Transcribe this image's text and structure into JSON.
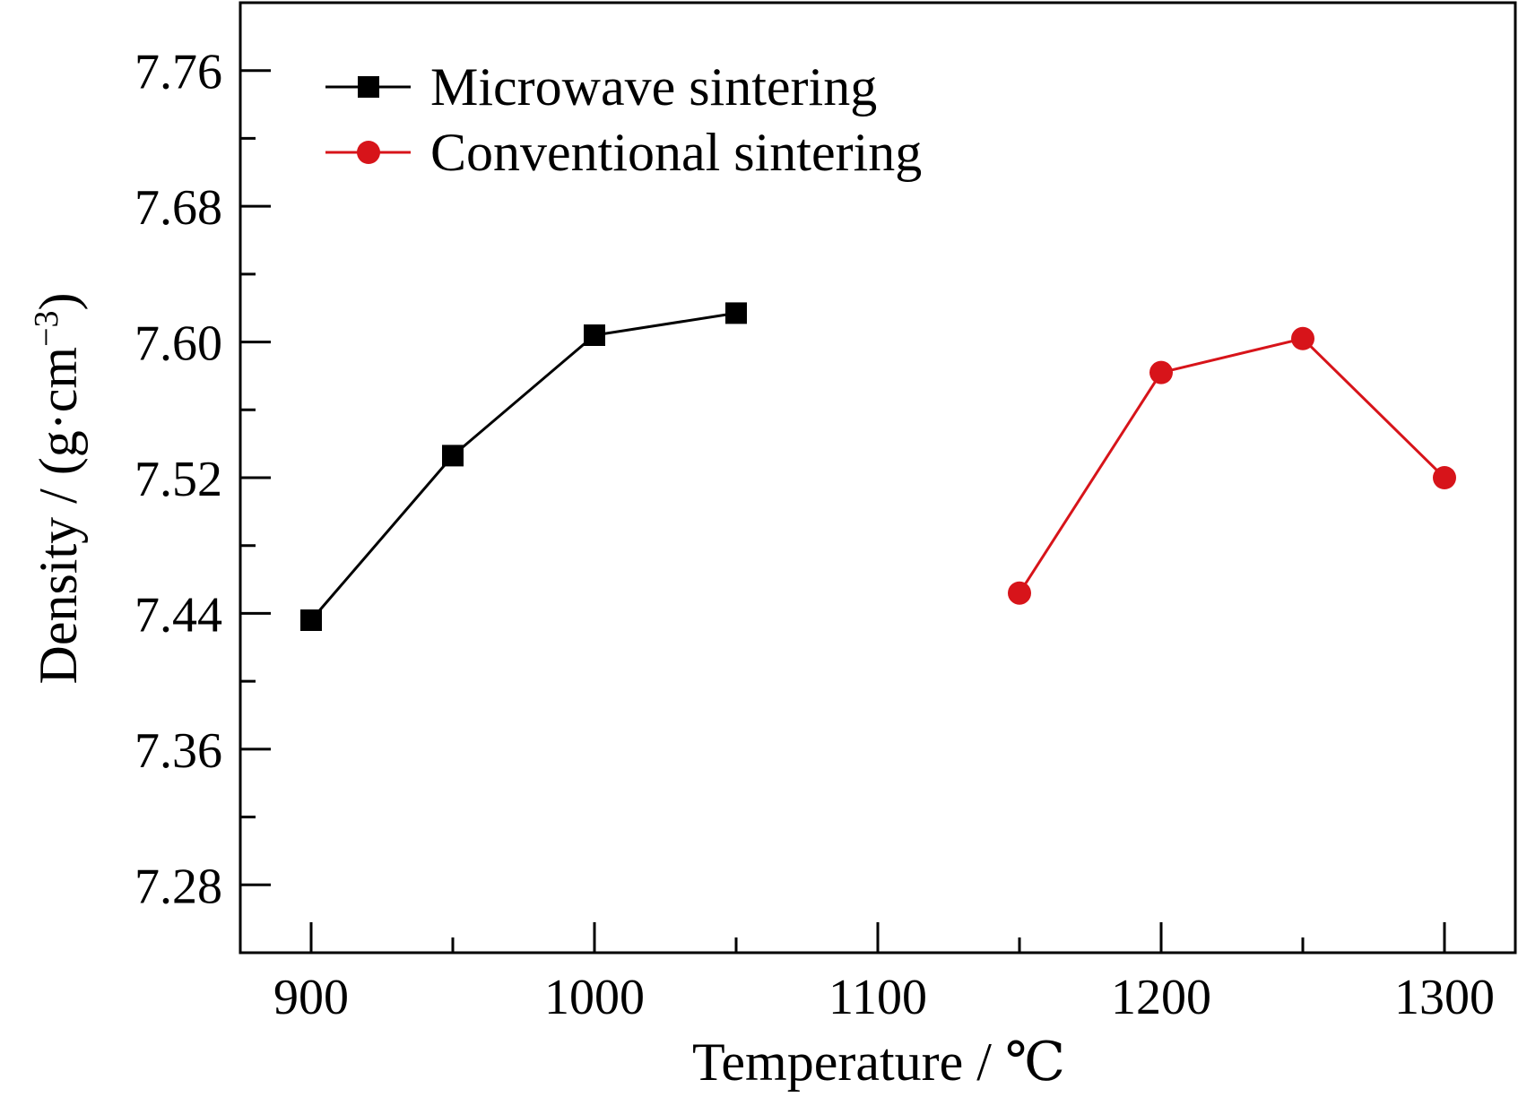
{
  "chart_data": {
    "type": "line",
    "xlabel": "Temperature / ℃",
    "ylabel_main": "Density / (g·cm",
    "ylabel_exp": "−3",
    "ylabel_close": ")",
    "xlim": [
      875,
      1325
    ],
    "ylim": [
      7.24,
      7.8
    ],
    "xticks": [
      900,
      1000,
      1100,
      1200,
      1300
    ],
    "xtick_labels": [
      "900",
      "1000",
      "1100",
      "1200",
      "1300"
    ],
    "yticks": [
      7.28,
      7.36,
      7.44,
      7.52,
      7.6,
      7.68,
      7.76
    ],
    "ytick_labels": [
      "7.28",
      "7.36",
      "7.44",
      "7.52",
      "7.60",
      "7.68",
      "7.76"
    ],
    "grid": false,
    "legend_position": "top-left",
    "series": [
      {
        "name": "Microwave sintering",
        "color": "#000000",
        "marker": "square",
        "x": [
          900,
          950,
          1000,
          1050
        ],
        "y": [
          7.436,
          7.533,
          7.604,
          7.617
        ]
      },
      {
        "name": "Conventional sintering",
        "color": "#d7141a",
        "marker": "circle",
        "x": [
          1150,
          1200,
          1250,
          1300
        ],
        "y": [
          7.452,
          7.582,
          7.602,
          7.52
        ]
      }
    ]
  }
}
